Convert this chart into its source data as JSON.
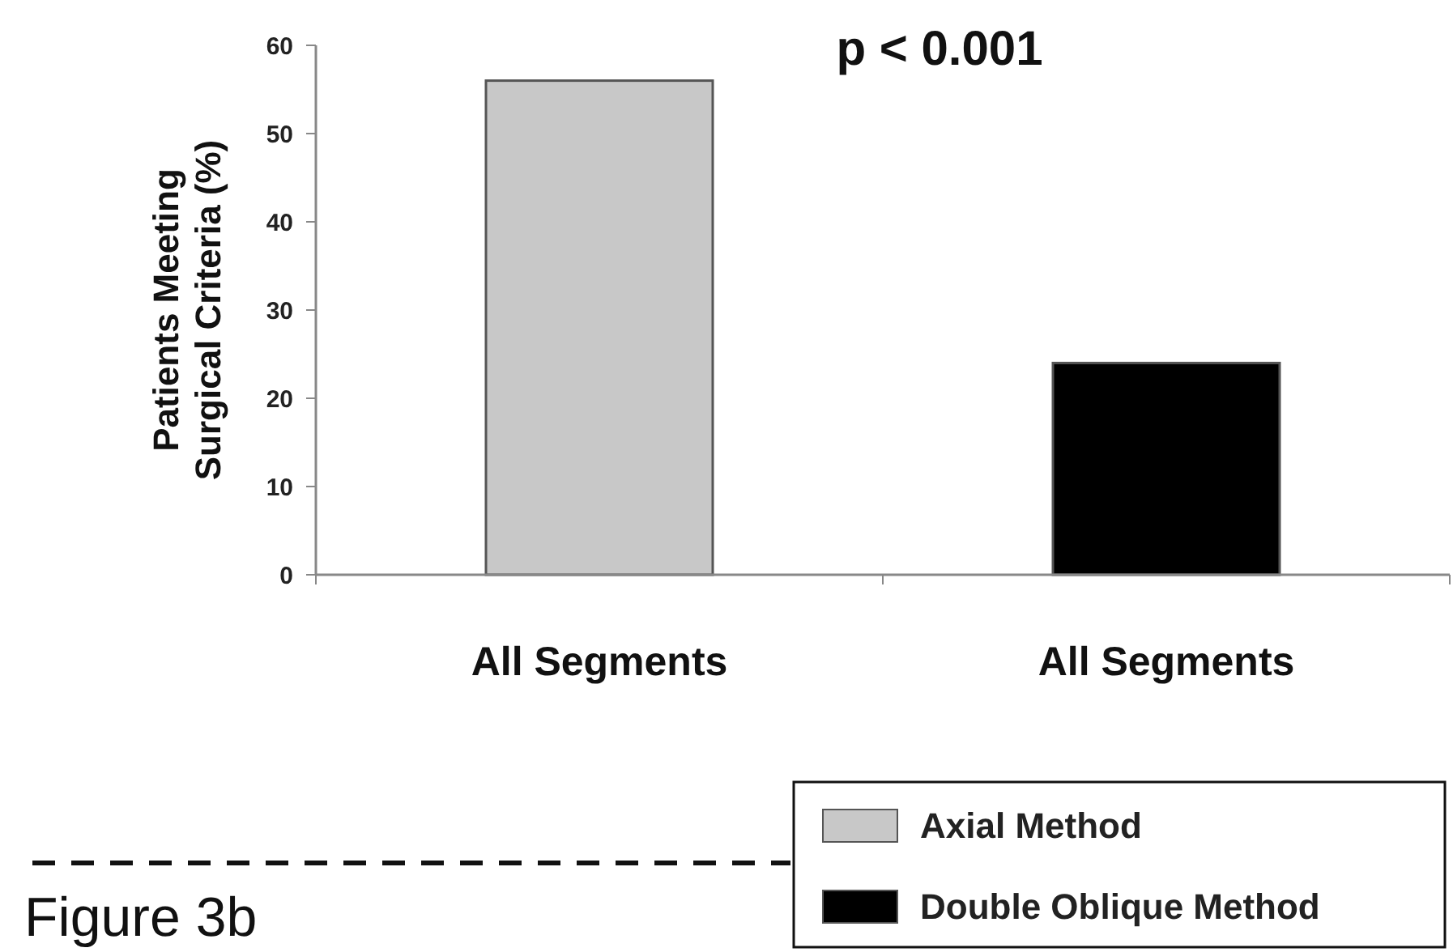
{
  "chart_data": {
    "type": "bar",
    "ylabel": "Patients  Meeting\nSurgical Criteria  (%)",
    "categories": [
      "All Segments",
      "All Segments"
    ],
    "series": [
      {
        "name": "Axial Method",
        "color": "#c8c8c8",
        "values": [
          56,
          null
        ]
      },
      {
        "name": "Double Oblique Method",
        "color": "#000000",
        "values": [
          null,
          24
        ]
      }
    ],
    "ylim": [
      0,
      60
    ],
    "yticks": [
      0,
      10,
      20,
      30,
      40,
      50,
      60
    ],
    "grid": false,
    "legend": "bottom right",
    "annotations": [
      "p < 0.001",
      "Figure 3b"
    ]
  }
}
